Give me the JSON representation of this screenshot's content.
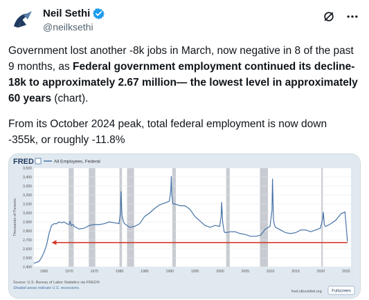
{
  "author": {
    "name": "Neil Sethi",
    "handle": "@neilksethi",
    "avatar_icon": "compass-logo-icon",
    "verified_icon": "verified-badge-icon",
    "verified_color": "#1d9bf0"
  },
  "header_icons": [
    "grok-icon",
    "more-icon"
  ],
  "tweet": {
    "p1_a": "Government lost another -8k jobs in March, now negative in 8 of the past 9 months, as ",
    "p1_bold": "Federal government employment continued its decline-18k to approximately 2.67 million— the lowest level in approximately 60 years",
    "p1_c": " (chart).",
    "p2": "From its October 2024 peak, total federal employment is now down -355k, or roughly -11.8%"
  },
  "chart_data": {
    "type": "line",
    "brand": "FRED",
    "legend": "All Employees, Federal",
    "ylabel": "Thousands of Persons",
    "ylim": [
      2400,
      3500
    ],
    "yticks": [
      "2,400",
      "2,500",
      "2,600",
      "2,700",
      "2,800",
      "2,900",
      "3,000",
      "3,100",
      "3,200",
      "3,300",
      "3,400",
      "3,500"
    ],
    "xlim": [
      1963,
      2026
    ],
    "xticks": [
      "1965",
      "1970",
      "1975",
      "1980",
      "1985",
      "1990",
      "1995",
      "2000",
      "2005",
      "2010",
      "2015",
      "2020",
      "2025"
    ],
    "recessions": [
      [
        1969.9,
        1970.9
      ],
      [
        1973.9,
        1975.2
      ],
      [
        1980.0,
        1980.5
      ],
      [
        1981.5,
        1982.9
      ],
      [
        1990.5,
        1991.2
      ],
      [
        2001.2,
        2001.9
      ],
      [
        2007.9,
        2009.5
      ],
      [
        2020.1,
        2020.4
      ]
    ],
    "series": [
      {
        "values_x": [
          1963,
          1964,
          1964.5,
          1965,
          1965.5,
          1966,
          1966.5,
          1967,
          1967.5,
          1968,
          1968.5,
          1969,
          1969.5,
          1970,
          1970.2,
          1970.4,
          1970.8,
          1971,
          1972,
          1973,
          1974,
          1975,
          1976,
          1977,
          1978,
          1979,
          1979.9,
          1980.2,
          1980.3,
          1980.5,
          1980.8,
          1981,
          1982,
          1983,
          1984,
          1985,
          1986,
          1987,
          1988,
          1989,
          1989.9,
          1990.2,
          1990.3,
          1990.4,
          1990.6,
          1991,
          1992,
          1993,
          1994,
          1995,
          1996,
          1997,
          1998,
          1999,
          1999.9,
          2000.2,
          2000.3,
          2000.5,
          2000.8,
          2001,
          2002,
          2003,
          2004,
          2005,
          2006,
          2007,
          2008,
          2009,
          2009.9,
          2010.3,
          2010.4,
          2010.6,
          2010.8,
          2011,
          2012,
          2013,
          2014,
          2015,
          2016,
          2017,
          2018,
          2019,
          2019.9,
          2020.4,
          2020.5,
          2020.7,
          2020.9,
          2021,
          2022,
          2023,
          2024,
          2024.8,
          2025,
          2025.3
        ],
        "values_y": [
          2440,
          2460,
          2500,
          2560,
          2640,
          2770,
          2860,
          2880,
          2880,
          2900,
          2890,
          2900,
          2880,
          2870,
          2910,
          2860,
          2870,
          2850,
          2820,
          2830,
          2860,
          2870,
          2870,
          2880,
          2900,
          2890,
          2880,
          3000,
          3240,
          2970,
          2900,
          2880,
          2840,
          2850,
          2880,
          2960,
          3000,
          3050,
          3090,
          3110,
          3130,
          3250,
          3410,
          3200,
          3100,
          3100,
          3080,
          3080,
          3040,
          2960,
          2910,
          2860,
          2840,
          2860,
          2850,
          2960,
          3120,
          2900,
          2790,
          2780,
          2790,
          2790,
          2770,
          2760,
          2740,
          2740,
          2750,
          2820,
          2850,
          3030,
          3380,
          2930,
          2860,
          2840,
          2810,
          2780,
          2770,
          2780,
          2810,
          2810,
          2790,
          2810,
          2830,
          2940,
          3010,
          2870,
          2850,
          2850,
          2880,
          2920,
          2990,
          3010,
          2880,
          2680
        ]
      }
    ],
    "annotation": {
      "type": "arrow",
      "from_x": 2025.3,
      "to_x": 1966.5,
      "y": 2670,
      "color": "#d33a2c"
    },
    "source": "Source: U.S. Bureau of Labor Statistics via FRED®",
    "shaded_note": "Shaded areas indicate U.S. recessions.",
    "site": "fred.stlouisfed.org",
    "fullscreen_label": "Fullscreen",
    "line_color": "#4572a7",
    "recession_color": "#c8ccd2"
  }
}
